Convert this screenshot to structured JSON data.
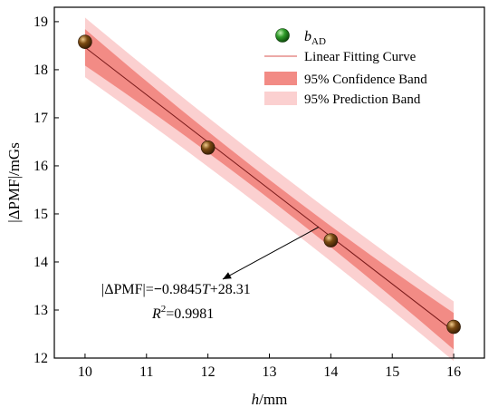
{
  "chart_data": {
    "type": "scatter",
    "xlabel_italic": "h",
    "xlabel_rest": "/mm",
    "ylabel": "|ΔPMF|/mGs",
    "xlim": [
      9.5,
      16.5
    ],
    "ylim": [
      12,
      19.3
    ],
    "xticks": [
      10,
      11,
      12,
      13,
      14,
      15,
      16
    ],
    "yticks": [
      12,
      13,
      14,
      15,
      16,
      17,
      18,
      19
    ],
    "points": {
      "name_base": "b",
      "name_sub": "AD",
      "x": [
        10,
        12,
        14,
        16
      ],
      "y": [
        18.58,
        16.38,
        14.45,
        12.65
      ],
      "color": "#7a4a12"
    },
    "fit": {
      "name": "Linear Fitting Curve",
      "slope": -0.9845,
      "intercept": 28.31,
      "x_range": [
        10,
        16
      ],
      "color": "#d9534f"
    },
    "confidence_band": {
      "name": "95% Confidence Band",
      "half_width_edge": 0.38,
      "half_width_center": 0.2,
      "color": "#f28b85"
    },
    "prediction_band": {
      "name": "95% Prediction Band",
      "half_width_edge": 0.62,
      "half_width_center": 0.5,
      "color": "#fbd0d0"
    },
    "legend_position": "top-right",
    "annotation": {
      "eq_prefix": "|ΔPMF|=",
      "eq_minus": "−",
      "eq_coef": "0.9845",
      "eq_var": "T",
      "eq_suffix": "+28.31",
      "r2_base": "R",
      "r2_sup": "2",
      "r2_value": "=0.9981",
      "arrow_target_x": 13.8
    }
  }
}
